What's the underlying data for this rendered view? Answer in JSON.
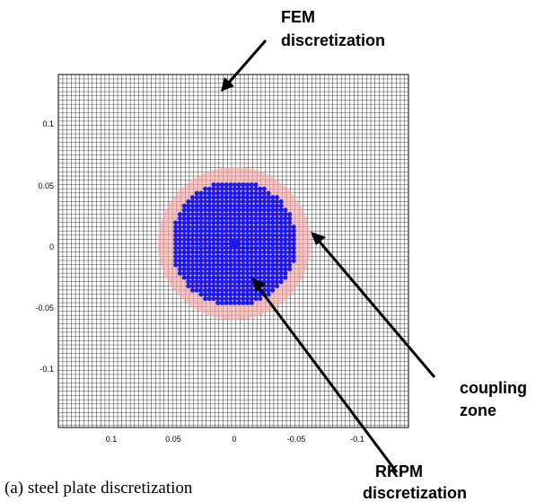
{
  "figure": {
    "caption": "(a) steel plate discretization",
    "colors": {
      "fem_mesh": "#000000",
      "coupling_zone": "#f4a3a3",
      "rkpm_nodes": "#1a1aee"
    },
    "axes": {
      "x_ticks": [
        "0.1",
        "0.05",
        "0",
        "-0.05",
        "-0.1"
      ],
      "y_ticks": [
        "0.1",
        "0.05",
        "0",
        "-0.05",
        "-0.1"
      ]
    },
    "callouts": {
      "fem": {
        "line1": "FEM",
        "line2": "discretization"
      },
      "coupling": {
        "line1": "coupling",
        "line2": "zone"
      },
      "rkpm": {
        "line1": "RKPM",
        "line2": "discretization"
      }
    }
  }
}
